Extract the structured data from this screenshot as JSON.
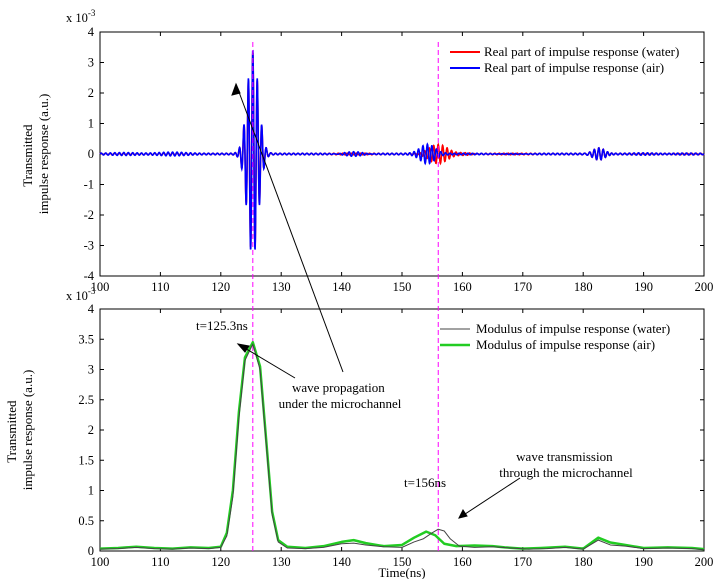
{
  "chart_data": [
    {
      "type": "line",
      "xlim": [
        100,
        200
      ],
      "ylim": [
        -4,
        4
      ],
      "x_ticks": [
        "100",
        "110",
        "120",
        "130",
        "140",
        "150",
        "160",
        "170",
        "180",
        "190",
        "200"
      ],
      "y_ticks": [
        "4",
        "3",
        "2",
        "1",
        "0",
        "-1",
        "-2",
        "-3",
        "-4"
      ],
      "y_multiplier": "x 10",
      "y_multiplier_exp": "-3",
      "ylabel_line1": "Transmitted",
      "ylabel_line2": "impulse response (a.u.)",
      "legend_position": "top-right",
      "series": [
        {
          "name": "Real part of impulse response (water)",
          "color": "#ff0000",
          "packets": [
            {
              "center": 125.3,
              "amp": 3.3,
              "width": 1.3,
              "freq": 1.35
            },
            {
              "center": 156.0,
              "amp": 0.33,
              "width": 2.2,
              "freq": 1.35
            },
            {
              "center": 160.5,
              "amp": 0.06,
              "width": 1.8,
              "freq": 1.35
            },
            {
              "center": 182.6,
              "amp": 0.2,
              "width": 1.4,
              "freq": 1.35
            }
          ]
        },
        {
          "name": "Real part of impulse response (air)",
          "color": "#0000ff",
          "packets": [
            {
              "center": 125.3,
              "amp": 3.4,
              "width": 1.3,
              "freq": 1.35
            },
            {
              "center": 154.2,
              "amp": 0.3,
              "width": 1.7,
              "freq": 1.35
            },
            {
              "center": 142.0,
              "amp": 0.1,
              "width": 2.4,
              "freq": 1.35
            },
            {
              "center": 182.6,
              "amp": 0.2,
              "width": 1.4,
              "freq": 1.35
            },
            {
              "center": 112.0,
              "amp": 0.04,
              "width": 3.0,
              "freq": 1.35
            },
            {
              "center": 104.0,
              "amp": 0.03,
              "width": 3.0,
              "freq": 1.35
            },
            {
              "center": 168.0,
              "amp": 0.04,
              "width": 3.0,
              "freq": 1.35
            },
            {
              "center": 190.0,
              "amp": 0.03,
              "width": 3.0,
              "freq": 1.35
            },
            {
              "center": 197.0,
              "amp": 0.03,
              "width": 3.0,
              "freq": 1.35
            }
          ]
        }
      ]
    },
    {
      "type": "line",
      "xlim": [
        100,
        200
      ],
      "ylim": [
        0,
        4
      ],
      "x_ticks": [
        "100",
        "110",
        "120",
        "130",
        "140",
        "150",
        "160",
        "170",
        "180",
        "190",
        "200"
      ],
      "y_ticks": [
        "4",
        "3.5",
        "3",
        "2.5",
        "2",
        "1.5",
        "1",
        "0.5",
        "0"
      ],
      "y_multiplier": "x 10",
      "y_multiplier_exp": "-3",
      "xlabel": "Time(ns)",
      "ylabel_line1": "Transmitted",
      "ylabel_line2": "impulse response (a.u.)",
      "legend_position": "top-right",
      "series": [
        {
          "name": "Modulus of impulse response (water)",
          "color": "#444444",
          "points": [
            [
              100,
              0.03
            ],
            [
              103,
              0.04
            ],
            [
              106,
              0.06
            ],
            [
              109,
              0.04
            ],
            [
              112,
              0.03
            ],
            [
              115,
              0.05
            ],
            [
              118,
              0.04
            ],
            [
              120,
              0.06
            ],
            [
              121,
              0.25
            ],
            [
              122,
              0.9
            ],
            [
              123,
              2.2
            ],
            [
              124,
              3.15
            ],
            [
              125.3,
              3.42
            ],
            [
              126.5,
              3.0
            ],
            [
              127.5,
              1.8
            ],
            [
              128.5,
              0.6
            ],
            [
              129.5,
              0.15
            ],
            [
              131,
              0.05
            ],
            [
              134,
              0.04
            ],
            [
              137,
              0.06
            ],
            [
              140,
              0.12
            ],
            [
              142,
              0.13
            ],
            [
              144,
              0.1
            ],
            [
              147,
              0.07
            ],
            [
              150,
              0.06
            ],
            [
              152,
              0.15
            ],
            [
              153.5,
              0.2
            ],
            [
              155,
              0.3
            ],
            [
              156,
              0.36
            ],
            [
              157,
              0.33
            ],
            [
              158,
              0.2
            ],
            [
              159.5,
              0.08
            ],
            [
              162,
              0.06
            ],
            [
              165,
              0.07
            ],
            [
              168,
              0.05
            ],
            [
              171,
              0.03
            ],
            [
              174,
              0.04
            ],
            [
              177,
              0.06
            ],
            [
              180,
              0.03
            ],
            [
              182.5,
              0.18
            ],
            [
              184.5,
              0.1
            ],
            [
              187,
              0.08
            ],
            [
              190,
              0.04
            ],
            [
              194,
              0.05
            ],
            [
              198,
              0.04
            ],
            [
              200,
              0.02
            ]
          ]
        },
        {
          "name": "Modulus of impulse response (air)",
          "color": "#22cc22",
          "points": [
            [
              100,
              0.04
            ],
            [
              103,
              0.05
            ],
            [
              106,
              0.07
            ],
            [
              109,
              0.05
            ],
            [
              112,
              0.04
            ],
            [
              115,
              0.06
            ],
            [
              118,
              0.05
            ],
            [
              120,
              0.07
            ],
            [
              121,
              0.3
            ],
            [
              122,
              1.0
            ],
            [
              123,
              2.3
            ],
            [
              124,
              3.2
            ],
            [
              125.3,
              3.45
            ],
            [
              126.5,
              3.05
            ],
            [
              127.5,
              1.85
            ],
            [
              128.5,
              0.65
            ],
            [
              129.5,
              0.18
            ],
            [
              131,
              0.07
            ],
            [
              134,
              0.05
            ],
            [
              137,
              0.08
            ],
            [
              140,
              0.15
            ],
            [
              142,
              0.18
            ],
            [
              144,
              0.13
            ],
            [
              147,
              0.08
            ],
            [
              150,
              0.1
            ],
            [
              152,
              0.22
            ],
            [
              154,
              0.32
            ],
            [
              155.5,
              0.26
            ],
            [
              157,
              0.12
            ],
            [
              159,
              0.08
            ],
            [
              162,
              0.09
            ],
            [
              165,
              0.08
            ],
            [
              167,
              0.06
            ],
            [
              170,
              0.04
            ],
            [
              173,
              0.05
            ],
            [
              177,
              0.07
            ],
            [
              180,
              0.04
            ],
            [
              182.5,
              0.22
            ],
            [
              184.5,
              0.14
            ],
            [
              187,
              0.1
            ],
            [
              190,
              0.05
            ],
            [
              194,
              0.06
            ],
            [
              198,
              0.05
            ],
            [
              200,
              0.03
            ]
          ]
        }
      ],
      "annotations": [
        {
          "text": "t=125.3ns"
        },
        {
          "text": "t=156ns"
        },
        {
          "text_line1": "wave propagation",
          "text_line2": "under the microchannel"
        },
        {
          "text_line1": "wave transmission",
          "text_line2": "through the microchannel"
        }
      ],
      "vlines": [
        125.3,
        156.0
      ]
    }
  ]
}
